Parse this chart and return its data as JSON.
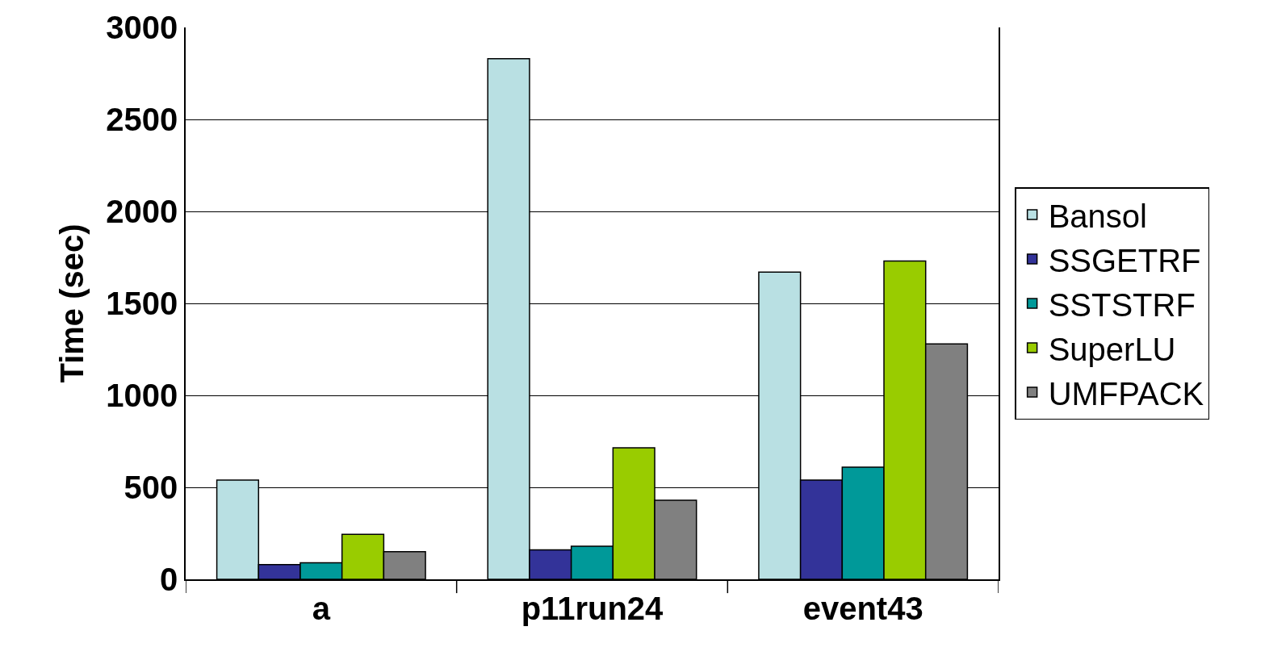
{
  "chart_data": {
    "type": "bar",
    "ylabel": "Time (sec)",
    "categories": [
      "a",
      "p11run24",
      "event43"
    ],
    "series": [
      {
        "name": "Bansol",
        "color": "#b9e0e3",
        "values": [
          540,
          2830,
          1670
        ]
      },
      {
        "name": "SSGETRF",
        "color": "#333399",
        "values": [
          80,
          160,
          540
        ]
      },
      {
        "name": "SSTSTRF",
        "color": "#009999",
        "values": [
          90,
          180,
          610
        ]
      },
      {
        "name": "SuperLU",
        "color": "#99cc00",
        "values": [
          245,
          715,
          1730
        ]
      },
      {
        "name": "UMFPACK",
        "color": "#808080",
        "values": [
          150,
          430,
          1280
        ]
      }
    ],
    "ylim": [
      0,
      3000
    ],
    "yticks": [
      0,
      500,
      1000,
      1500,
      2000,
      2500,
      3000
    ],
    "grid": "y",
    "legend": "right"
  }
}
